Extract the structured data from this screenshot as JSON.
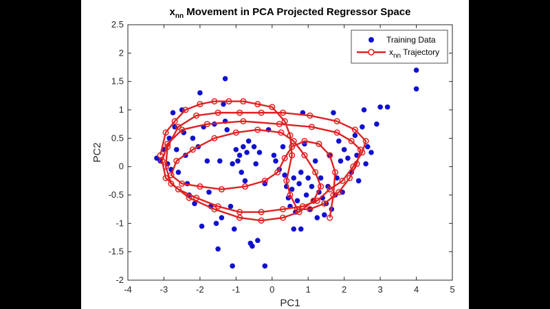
{
  "chart_data": {
    "type": "scatter",
    "title_main": "x",
    "title_sub": "nn",
    "title_rest": " Movement in PCA Projected Regressor Space",
    "xlabel": "PC1",
    "ylabel": "PC2",
    "xlim": [
      -4,
      5
    ],
    "ylim": [
      -2,
      2.5
    ],
    "xticks": [
      "-4",
      "-3",
      "-2",
      "-1",
      "0",
      "1",
      "2",
      "3",
      "4",
      "5"
    ],
    "yticks": [
      "-2",
      "-1.5",
      "-1",
      "-0.5",
      "0",
      "0.5",
      "1",
      "1.5",
      "2",
      "2.5"
    ],
    "grid": false,
    "legend_position": "top-right",
    "colors": {
      "training": "#1010d0",
      "trajectory": "#e02020"
    },
    "series": [
      {
        "name": "Training Data",
        "style": "markers",
        "points": [
          [
            -3.2,
            0.15
          ],
          [
            -3.1,
            0.1
          ],
          [
            -3.0,
            0.3
          ],
          [
            -2.9,
            0.05
          ],
          [
            -2.85,
            0.5
          ],
          [
            -2.8,
            -0.05
          ],
          [
            -2.75,
            0.95
          ],
          [
            -2.7,
            0.7
          ],
          [
            -2.65,
            0.3
          ],
          [
            -2.6,
            -0.1
          ],
          [
            -2.5,
            1.0
          ],
          [
            -2.45,
            0.6
          ],
          [
            -2.4,
            0.2
          ],
          [
            -2.35,
            -0.3
          ],
          [
            -2.3,
            -0.5
          ],
          [
            -2.2,
            0.5
          ],
          [
            -2.15,
            -0.65
          ],
          [
            -2.05,
            0.35
          ],
          [
            -2.0,
            1.3
          ],
          [
            -1.95,
            -1.05
          ],
          [
            -1.9,
            0.7
          ],
          [
            -1.8,
            0.1
          ],
          [
            -1.75,
            -0.45
          ],
          [
            -1.7,
            -0.7
          ],
          [
            -1.6,
            0.75
          ],
          [
            -1.55,
            -1.0
          ],
          [
            -1.5,
            -1.45
          ],
          [
            -1.45,
            0.1
          ],
          [
            -1.4,
            -0.9
          ],
          [
            -1.35,
            1.1
          ],
          [
            -1.3,
            1.55
          ],
          [
            -1.3,
            0.8
          ],
          [
            -1.25,
            0.65
          ],
          [
            -1.15,
            -0.7
          ],
          [
            -1.1,
            -1.75
          ],
          [
            -1.05,
            -1.1
          ],
          [
            -1.1,
            0.05
          ],
          [
            -1.0,
            0.3
          ],
          [
            -0.95,
            0.1
          ],
          [
            -0.9,
            0.2
          ],
          [
            -0.85,
            -0.1
          ],
          [
            -0.8,
            0.35
          ],
          [
            -0.75,
            -0.25
          ],
          [
            -0.7,
            0.25
          ],
          [
            -0.65,
            0.45
          ],
          [
            -0.6,
            -1.35
          ],
          [
            -0.55,
            -1.4
          ],
          [
            -0.5,
            0.35
          ],
          [
            -0.45,
            0.05
          ],
          [
            -0.4,
            -1.3
          ],
          [
            -0.35,
            0.25
          ],
          [
            -0.2,
            -0.3
          ],
          [
            -0.2,
            -1.75
          ],
          [
            -0.1,
            0.65
          ],
          [
            0.05,
            0.2
          ],
          [
            0.1,
            0.1
          ],
          [
            0.2,
            -0.05
          ],
          [
            0.3,
            0.35
          ],
          [
            0.35,
            -0.15
          ],
          [
            0.4,
            -0.35
          ],
          [
            0.45,
            -0.55
          ],
          [
            0.5,
            -0.7
          ],
          [
            0.55,
            -0.4
          ],
          [
            0.6,
            -0.2
          ],
          [
            0.6,
            -1.1
          ],
          [
            0.65,
            -0.8
          ],
          [
            0.7,
            -0.6
          ],
          [
            0.75,
            -0.3
          ],
          [
            0.8,
            -0.1
          ],
          [
            0.8,
            -1.1
          ],
          [
            0.85,
            0.95
          ],
          [
            0.9,
            0.4
          ],
          [
            0.95,
            -0.5
          ],
          [
            1.0,
            -0.2
          ],
          [
            1.05,
            -0.75
          ],
          [
            1.1,
            -0.35
          ],
          [
            1.15,
            -0.6
          ],
          [
            1.2,
            0.1
          ],
          [
            1.25,
            -0.9
          ],
          [
            1.3,
            -0.45
          ],
          [
            1.35,
            -0.2
          ],
          [
            1.4,
            -0.55
          ],
          [
            1.45,
            -0.85
          ],
          [
            1.5,
            -0.65
          ],
          [
            1.55,
            -0.35
          ],
          [
            1.6,
            0.2
          ],
          [
            1.65,
            -0.75
          ],
          [
            1.7,
            0.95
          ],
          [
            1.75,
            -0.5
          ],
          [
            1.8,
            -0.2
          ],
          [
            1.85,
            0.45
          ],
          [
            1.9,
            0.1
          ],
          [
            1.95,
            -0.45
          ],
          [
            2.0,
            0.3
          ],
          [
            2.1,
            0.15
          ],
          [
            2.2,
            -0.1
          ],
          [
            2.3,
            0.55
          ],
          [
            2.35,
            0.2
          ],
          [
            2.4,
            -0.25
          ],
          [
            2.5,
            0.7
          ],
          [
            2.55,
            1.0
          ],
          [
            2.6,
            0.05
          ],
          [
            2.65,
            0.35
          ],
          [
            2.75,
            0.25
          ],
          [
            2.9,
            0.75
          ],
          [
            3.0,
            1.05
          ],
          [
            3.2,
            1.05
          ],
          [
            4.0,
            1.7
          ],
          [
            4.0,
            1.37
          ]
        ]
      },
      {
        "name": "x",
        "name_sub": "nn",
        "name_rest": " Trajectory",
        "style": "line-markers",
        "points": [
          [
            -3.1,
            0.2
          ],
          [
            -2.95,
            0.6
          ],
          [
            -2.7,
            0.8
          ],
          [
            -2.4,
            1.0
          ],
          [
            -2.0,
            1.1
          ],
          [
            -1.6,
            1.15
          ],
          [
            -1.2,
            1.15
          ],
          [
            -0.8,
            1.15
          ],
          [
            -0.4,
            1.1
          ],
          [
            0.0,
            1.05
          ],
          [
            0.35,
            0.8
          ],
          [
            0.5,
            0.55
          ],
          [
            0.55,
            0.2
          ],
          [
            0.4,
            -0.25
          ],
          [
            0.5,
            -0.5
          ],
          [
            0.7,
            -0.75
          ],
          [
            1.05,
            -0.75
          ],
          [
            1.45,
            -0.65
          ],
          [
            1.85,
            -0.45
          ],
          [
            2.15,
            -0.2
          ],
          [
            2.35,
            0.05
          ],
          [
            2.45,
            0.3
          ],
          [
            2.2,
            0.45
          ],
          [
            1.8,
            0.6
          ],
          [
            1.1,
            0.7
          ],
          [
            0.2,
            0.75
          ],
          [
            -0.8,
            0.8
          ],
          [
            -1.8,
            0.75
          ],
          [
            -2.5,
            0.65
          ],
          [
            -2.9,
            0.4
          ],
          [
            -3.05,
            0.1
          ],
          [
            -2.95,
            -0.2
          ],
          [
            -2.6,
            -0.4
          ],
          [
            -2.1,
            -0.55
          ],
          [
            -1.5,
            -0.7
          ],
          [
            -0.9,
            -0.8
          ],
          [
            -0.3,
            -0.8
          ],
          [
            0.3,
            -0.75
          ],
          [
            0.85,
            -0.7
          ],
          [
            1.25,
            -0.6
          ],
          [
            1.6,
            -0.4
          ],
          [
            1.95,
            -0.25
          ],
          [
            2.25,
            0.0
          ],
          [
            2.5,
            0.25
          ],
          [
            2.6,
            0.45
          ],
          [
            2.3,
            0.65
          ],
          [
            1.8,
            0.8
          ],
          [
            1.05,
            0.9
          ],
          [
            0.3,
            0.95
          ],
          [
            -0.3,
            0.95
          ],
          [
            -0.9,
            0.95
          ],
          [
            -1.5,
            0.95
          ],
          [
            -2.1,
            0.9
          ],
          [
            -2.6,
            0.7
          ],
          [
            -2.9,
            0.35
          ],
          [
            -2.95,
            0.0
          ],
          [
            -2.8,
            -0.3
          ],
          [
            -2.3,
            -0.55
          ],
          [
            -1.6,
            -0.75
          ],
          [
            -0.9,
            -0.9
          ],
          [
            -0.3,
            -0.95
          ],
          [
            0.3,
            -0.9
          ],
          [
            0.75,
            -0.8
          ],
          [
            1.15,
            -0.6
          ],
          [
            1.35,
            -0.35
          ],
          [
            1.2,
            -0.1
          ],
          [
            0.9,
            0.2
          ],
          [
            0.6,
            0.45
          ],
          [
            0.25,
            0.6
          ],
          [
            -0.4,
            0.65
          ],
          [
            -1.0,
            0.6
          ],
          [
            -1.6,
            0.5
          ],
          [
            -2.2,
            0.3
          ],
          [
            -2.65,
            0.1
          ],
          [
            -2.8,
            -0.15
          ],
          [
            -2.5,
            -0.3
          ],
          [
            -2.0,
            -0.35
          ],
          [
            -1.4,
            -0.4
          ],
          [
            -0.75,
            -0.35
          ],
          [
            -0.2,
            -0.25
          ],
          [
            0.15,
            -0.1
          ],
          [
            0.35,
            0.15
          ],
          [
            0.55,
            0.35
          ],
          [
            0.9,
            0.45
          ],
          [
            1.3,
            0.4
          ],
          [
            1.6,
            0.2
          ],
          [
            1.75,
            -0.1
          ],
          [
            1.7,
            -0.5
          ],
          [
            1.6,
            -0.9
          ]
        ]
      }
    ]
  }
}
